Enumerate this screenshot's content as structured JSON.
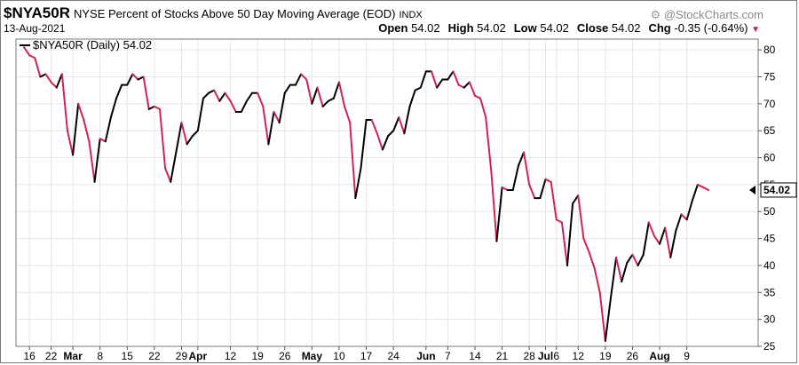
{
  "header": {
    "symbol": "$NYA50R",
    "description": "NYSE Percent of Stocks Above 50 Day Moving Average (EOD)",
    "exchange": "INDX",
    "watermark": "@StockCharts.com",
    "watermark_icon": "gear-icon",
    "date": "13-Aug-2021"
  },
  "ohlc": {
    "open_label": "Open",
    "open": "54.02",
    "high_label": "High",
    "high": "54.02",
    "low_label": "Low",
    "low": "54.02",
    "close_label": "Close",
    "close": "54.02",
    "chg_label": "Chg",
    "chg": "-0.35 (-0.64%)",
    "chg_arrow": "▼",
    "chg_arrow_color": "#c81e50"
  },
  "chart_data": {
    "type": "line",
    "legend": "$NYA50R (Daily) 54.02",
    "legend_position": "top-left",
    "last_value_label": "54.02",
    "ylim": [
      25,
      82
    ],
    "y_ticks": [
      25,
      30,
      35,
      40,
      45,
      50,
      55,
      60,
      65,
      70,
      75,
      80
    ],
    "grid": true,
    "up_color": "#000000",
    "down_color": "#d0244f",
    "x_ticks": [
      {
        "label": "16",
        "index": 1,
        "bold": false
      },
      {
        "label": "22",
        "index": 5,
        "bold": false
      },
      {
        "label": "Mar",
        "index": 9,
        "bold": true
      },
      {
        "label": "8",
        "index": 14,
        "bold": false
      },
      {
        "label": "15",
        "index": 19,
        "bold": false
      },
      {
        "label": "22",
        "index": 24,
        "bold": false
      },
      {
        "label": "29",
        "index": 29,
        "bold": false
      },
      {
        "label": "Apr",
        "index": 32,
        "bold": true
      },
      {
        "label": "12",
        "index": 38,
        "bold": false
      },
      {
        "label": "19",
        "index": 43,
        "bold": false
      },
      {
        "label": "26",
        "index": 48,
        "bold": false
      },
      {
        "label": "May",
        "index": 53,
        "bold": true
      },
      {
        "label": "10",
        "index": 58,
        "bold": false
      },
      {
        "label": "17",
        "index": 63,
        "bold": false
      },
      {
        "label": "24",
        "index": 68,
        "bold": false
      },
      {
        "label": "Jun",
        "index": 74,
        "bold": true
      },
      {
        "label": "7",
        "index": 78,
        "bold": false
      },
      {
        "label": "14",
        "index": 83,
        "bold": false
      },
      {
        "label": "21",
        "index": 88,
        "bold": false
      },
      {
        "label": "28",
        "index": 93,
        "bold": false
      },
      {
        "label": "Jul",
        "index": 96,
        "bold": true
      },
      {
        "label": "6",
        "index": 98,
        "bold": false
      },
      {
        "label": "12",
        "index": 102,
        "bold": false
      },
      {
        "label": "19",
        "index": 107,
        "bold": false
      },
      {
        "label": "26",
        "index": 112,
        "bold": false
      },
      {
        "label": "Aug",
        "index": 117,
        "bold": true
      },
      {
        "label": "9",
        "index": 122,
        "bold": false
      }
    ],
    "values": [
      80.5,
      79.0,
      78.5,
      75.0,
      75.5,
      74.0,
      73.0,
      75.5,
      65.0,
      60.5,
      70.0,
      67.0,
      63.0,
      55.5,
      63.5,
      63.0,
      67.5,
      71.0,
      73.5,
      73.5,
      75.5,
      74.5,
      75.0,
      69.0,
      69.5,
      69.0,
      58.0,
      55.5,
      61.0,
      66.5,
      62.5,
      64.0,
      65.0,
      71.0,
      72.0,
      72.5,
      70.5,
      72.0,
      70.5,
      68.5,
      68.5,
      70.5,
      72.0,
      72.0,
      69.5,
      62.5,
      68.5,
      66.5,
      72.0,
      73.5,
      73.5,
      75.5,
      74.5,
      70.0,
      73.0,
      69.5,
      70.5,
      71.0,
      74.0,
      69.5,
      66.5,
      52.5,
      58.0,
      67.0,
      67.0,
      64.5,
      61.5,
      64.0,
      65.0,
      67.5,
      64.5,
      69.5,
      72.5,
      73.0,
      76.0,
      76.0,
      73.0,
      74.5,
      74.5,
      76.0,
      73.5,
      73.0,
      74.0,
      71.5,
      71.0,
      67.5,
      57.5,
      44.5,
      54.5,
      54.0,
      54.0,
      58.5,
      61.0,
      55.0,
      52.5,
      52.5,
      56.0,
      55.5,
      48.5,
      48.0,
      40.0,
      51.5,
      53.0,
      45.0,
      42.5,
      39.5,
      35.0,
      26.0,
      34.0,
      41.5,
      37.0,
      40.5,
      42.0,
      40.0,
      42.0,
      48.0,
      45.5,
      44.0,
      47.0,
      41.5,
      46.5,
      49.5,
      48.5,
      52.0,
      55.0,
      54.5,
      54.0
    ]
  }
}
